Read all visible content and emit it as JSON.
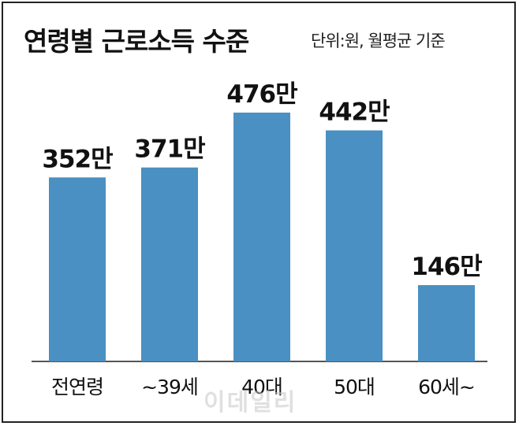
{
  "title": "연령별 근로소득 수준",
  "unit_note": "단위:원, 월평균 기준",
  "watermark": "이데일리",
  "colors": {
    "bar": "#4a90c2",
    "baseline": "#555555",
    "text": "#111111"
  },
  "chart_data": {
    "type": "bar",
    "title": "연령별 근로소득 수준",
    "categories": [
      "전연령",
      "~39세",
      "40대",
      "50대",
      "60세~"
    ],
    "values": [
      352,
      371,
      476,
      442,
      146
    ],
    "data_labels": [
      "352만",
      "371만",
      "476만",
      "442만",
      "146만"
    ],
    "ylim": [
      0,
      476
    ],
    "grid": false,
    "legend": "none"
  }
}
